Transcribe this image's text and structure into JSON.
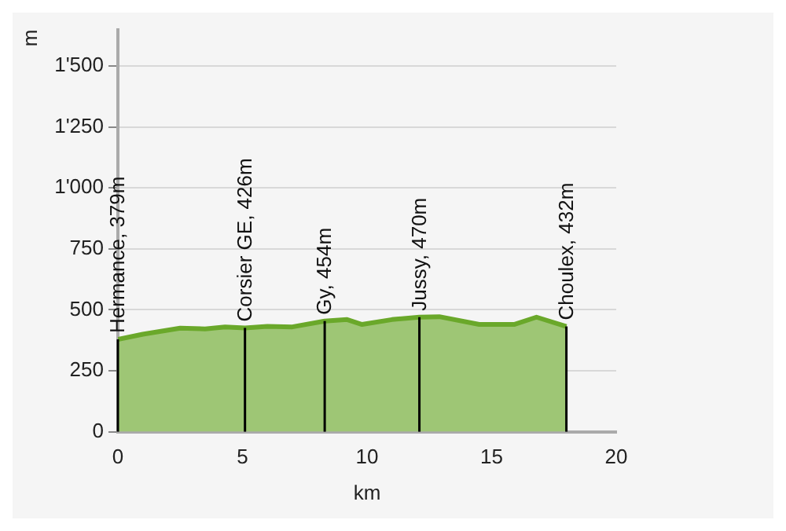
{
  "chart_data": {
    "type": "area",
    "xlabel": "km",
    "ylabel": "m",
    "series": [
      {
        "color": "#6aa82a",
        "x": [
          0,
          1,
          2.5,
          3.5,
          4.3,
          5.1,
          6,
          7,
          8.3,
          9.2,
          9.8,
          11,
          12.1,
          12.9,
          14.5,
          15.9,
          16.8,
          18
        ],
        "values": [
          379,
          400,
          425,
          422,
          430,
          426,
          432,
          430,
          454,
          460,
          440,
          460,
          470,
          472,
          440,
          440,
          470,
          432
        ]
      }
    ],
    "xlim": [
      0,
      20
    ],
    "xticks": [
      0,
      5,
      10,
      15,
      20
    ],
    "ylim": [
      0,
      1650
    ],
    "yticks": [
      0,
      250,
      500,
      750,
      {
        "value": 1000,
        "label": "1'000"
      },
      {
        "value": 1250,
        "label": "1'250"
      },
      {
        "value": 1500,
        "label": "1'500"
      }
    ],
    "grid": "y",
    "legend": false,
    "marker": "none",
    "line_style": "solid",
    "annotations": [
      {
        "text": "Hermance, 379m",
        "x": 0,
        "y": 379
      },
      {
        "text": "Corsier GE, 426m",
        "x": 5.1,
        "y": 426
      },
      {
        "text": "Gy, 454m",
        "x": 8.3,
        "y": 454
      },
      {
        "text": "Jussy, 470m",
        "x": 12.1,
        "y": 470
      },
      {
        "text": "Choulex, 432m",
        "x": 18,
        "y": 432
      }
    ]
  }
}
